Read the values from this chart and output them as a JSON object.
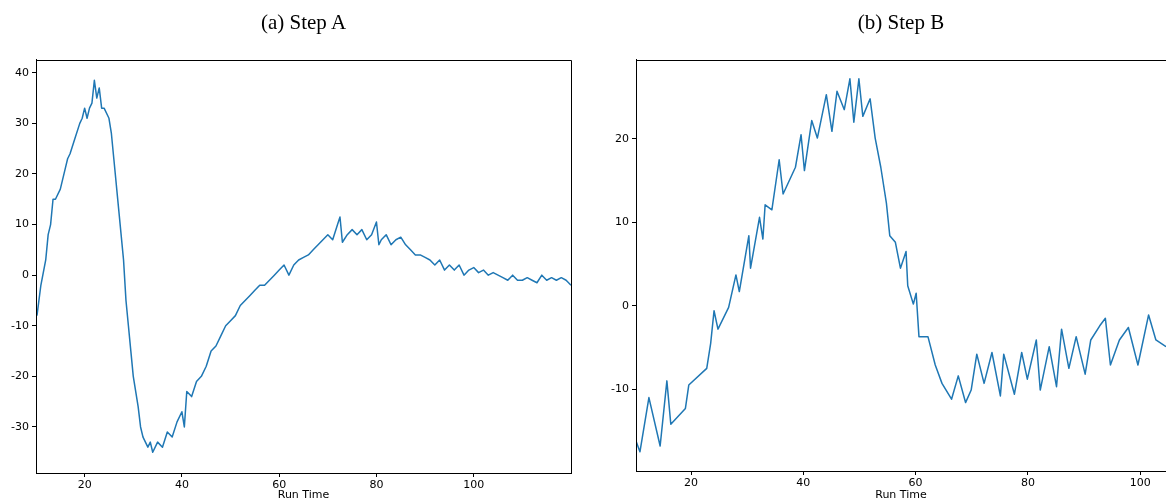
{
  "chart_data": [
    {
      "type": "line",
      "title": "(a) Step A",
      "xlabel": "Run Time",
      "color": "#1f77b4",
      "grid": false,
      "legend": false,
      "marker": "none",
      "xlim": [
        10,
        120
      ],
      "ylim": [
        -39.1,
        42.6
      ],
      "xticks": [
        20,
        40,
        60,
        80,
        100
      ],
      "yticks": [
        -30,
        -20,
        -10,
        0,
        10,
        20,
        30,
        40
      ],
      "x": [
        10.2,
        11,
        12,
        12.5,
        13,
        13.5,
        14,
        15,
        16,
        16.5,
        17,
        18,
        19,
        19.5,
        20,
        20.5,
        21,
        21.5,
        22,
        22.5,
        23,
        23.5,
        24,
        25,
        25.5,
        26,
        27,
        28,
        28.5,
        29,
        29.5,
        30,
        31,
        31.5,
        32,
        33,
        33.5,
        34,
        35,
        36,
        37,
        38,
        39,
        40,
        40.5,
        41,
        42,
        43,
        44,
        45,
        46,
        47,
        48,
        49,
        50,
        51,
        52,
        53,
        54,
        55,
        56,
        57,
        58,
        59,
        60,
        61,
        62,
        63,
        64,
        65,
        66,
        67,
        68,
        69,
        70,
        71,
        72,
        72.5,
        73,
        74,
        75,
        76,
        77,
        78,
        79,
        80,
        80.5,
        81,
        82,
        83,
        84,
        85,
        86,
        87,
        88,
        89,
        90,
        91,
        92,
        93,
        94,
        95,
        96,
        97,
        98,
        99,
        100,
        101,
        102,
        103,
        104,
        105,
        106,
        107,
        108,
        109,
        110,
        111,
        112,
        113,
        114,
        115,
        116,
        117,
        118,
        119,
        120
      ],
      "values": [
        -8,
        -2,
        3,
        8,
        10,
        15,
        15,
        17,
        21,
        23,
        24,
        27,
        30,
        31,
        33,
        31,
        33,
        34,
        38.5,
        35,
        37,
        33,
        33,
        31,
        28,
        23,
        13,
        3,
        -5,
        -10,
        -15,
        -20,
        -26,
        -30,
        -32,
        -34,
        -33,
        -35,
        -33,
        -34,
        -31,
        -32,
        -29,
        -27,
        -30,
        -23,
        -24,
        -21,
        -20,
        -18,
        -15,
        -14,
        -12,
        -10,
        -9,
        -8,
        -6,
        -5,
        -4,
        -3,
        -2,
        -2,
        -1,
        0,
        1,
        2,
        0,
        2,
        3,
        3.5,
        4,
        5,
        6,
        7,
        8,
        7,
        10,
        11.5,
        6.5,
        8,
        9,
        8,
        9,
        7,
        8,
        10.5,
        6,
        7,
        8,
        6,
        7,
        7.5,
        6,
        5,
        4,
        4,
        3.5,
        3,
        2,
        3,
        1,
        2,
        1,
        2,
        0,
        1,
        1.5,
        0.5,
        1,
        0,
        0.5,
        0,
        -0.5,
        -1,
        0,
        -1,
        -1,
        -0.5,
        -1,
        -1.5,
        0,
        -1,
        -0.5,
        -1,
        -0.5,
        -1,
        -2
      ]
    },
    {
      "type": "line",
      "title": "(b) Step B",
      "xlabel": "Run Time",
      "color": "#1f77b4",
      "grid": false,
      "legend": false,
      "marker": "none",
      "xlim": [
        10.2,
        104.6
      ],
      "ylim": [
        -19.8,
        29.5
      ],
      "xticks": [
        20,
        40,
        60,
        80,
        100
      ],
      "yticks": [
        -10,
        0,
        10,
        20
      ],
      "x": [
        10.2,
        10.9,
        12.5,
        14.5,
        15.7,
        16.4,
        19,
        19.6,
        22.8,
        23.5,
        24.1,
        24.8,
        26.7,
        28,
        28.6,
        30.3,
        30.6,
        32.2,
        32.8,
        33.2,
        34.4,
        35.7,
        36.4,
        38.6,
        39.6,
        40.2,
        41.5,
        42.5,
        44.1,
        45.1,
        46,
        47.3,
        48.3,
        49,
        49.9,
        50.6,
        51.9,
        52.8,
        53.8,
        54.8,
        55.4,
        56.4,
        57.3,
        58.3,
        58.6,
        59.6,
        60.1,
        60.6,
        62.2,
        63.5,
        64.7,
        66.4,
        67.6,
        68.9,
        69.9,
        70.9,
        72.2,
        73.6,
        75.1,
        75.7,
        77.6,
        78.9,
        79.9,
        81.5,
        82.2,
        83.8,
        85.1,
        86,
        87.3,
        88.6,
        90.2,
        91.2,
        92.8,
        93.8,
        94.7,
        96.3,
        97.9,
        99.6,
        101.5,
        102.8,
        104.6
      ],
      "values": [
        -16.2,
        -17.5,
        -11,
        -16.8,
        -9,
        -14.2,
        -12.3,
        -9.5,
        -7.5,
        -4.5,
        -0.6,
        -2.8,
        -0.2,
        3.7,
        1.7,
        8.4,
        4.5,
        10.6,
        8,
        12.1,
        11.5,
        17.5,
        13.4,
        16.6,
        20.5,
        16.2,
        22.2,
        20.1,
        25.3,
        20.9,
        25.7,
        23.5,
        27.2,
        22,
        27.2,
        22.7,
        24.8,
        20.1,
        16.6,
        12.3,
        8.4,
        7.6,
        4.5,
        6.5,
        2.4,
        0.2,
        1.5,
        -3.7,
        -3.7,
        -7.1,
        -9.3,
        -11.2,
        -8.4,
        -11.6,
        -10.1,
        -5.8,
        -9.3,
        -5.6,
        -10.8,
        -5.8,
        -10.6,
        -5.6,
        -8.8,
        -4.1,
        -10.1,
        -4.9,
        -9.7,
        -2.8,
        -7.5,
        -3.7,
        -8.2,
        -4.1,
        -2.4,
        -1.5,
        -7.1,
        -4.1,
        -2.6,
        -7.1,
        -1.1,
        -4.1,
        -4.9
      ]
    }
  ]
}
